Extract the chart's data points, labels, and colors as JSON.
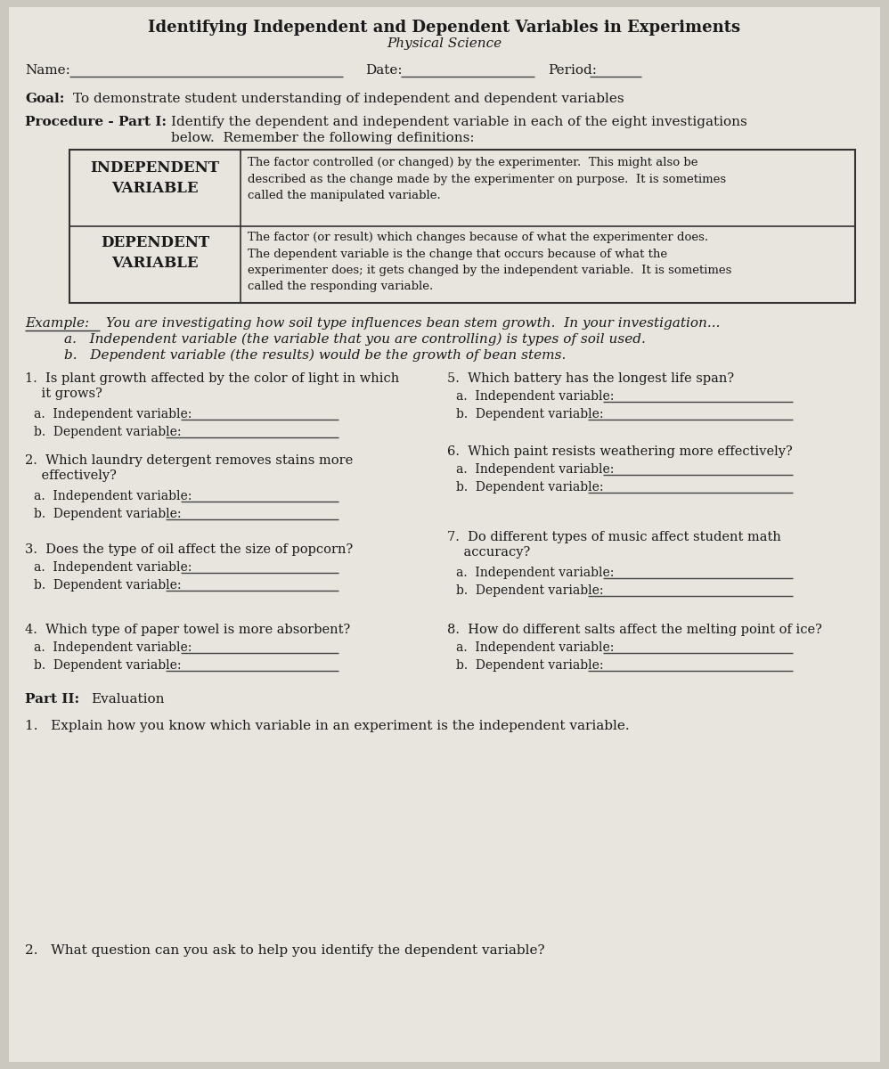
{
  "title": "Identifying Independent and Dependent Variables in Experiments",
  "subtitle": "Physical Science",
  "bg_color": "#cbc8c0",
  "paper_color": "#e8e5de",
  "text_color": "#1a1a1a",
  "table_row1_header": "INDEPENDENT\nVARIABLE",
  "table_row1_text": "The factor controlled (or changed) by the experimenter.  This might also be\ndescribed as the change made by the experimenter on purpose.  It is sometimes\ncalled the manipulated variable.",
  "table_row2_header": "DEPENDENT\nVARIABLE",
  "table_row2_text": "The factor (or result) which changes because of what the experimenter does.\nThe dependent variable is the change that occurs because of what the\nexperimenter does; it gets changed by the independent variable.  It is sometimes\ncalled the responding variable.",
  "example_intro": "You are investigating how soil type influences bean stem growth.  In your investigation...",
  "example_a": "a.   Independent variable (the variable that you are controlling) is types of soil used.",
  "example_b": "b.   Dependent variable (the results) would be the growth of bean stems.",
  "q1": "1.  Is plant growth affected by the color of light in which\n    it grows?",
  "q2": "2.  Which laundry detergent removes stains more\n    effectively?",
  "q3": "3.  Does the type of oil affect the size of popcorn?",
  "q4": "4.  Which type of paper towel is more absorbent?",
  "q5": "5.  Which battery has the longest life span?",
  "q6": "6.  Which paint resists weathering more effectively?",
  "q7": "7.  Do different types of music affect student math\n    accuracy?",
  "q8": "8.  How do different salts affect the melting point of ice?",
  "eval_q1": "1.   Explain how you know which variable in an experiment is the independent variable.",
  "eval_q2": "2.   What question can you ask to help you identify the dependent variable?"
}
